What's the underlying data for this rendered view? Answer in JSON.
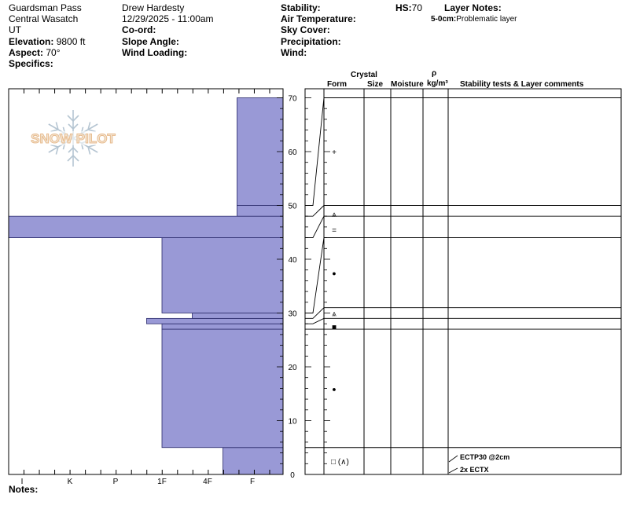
{
  "header": {
    "location": "Guardsman Pass",
    "range": "Central Wasatch",
    "state": "UT",
    "elevation_label": "Elevation:",
    "elevation_value": "9800 ft",
    "aspect_label": "Aspect:",
    "aspect_value": "70°",
    "specifics_label": "Specifics:",
    "observer": "Drew Hardesty",
    "datetime": "12/29/2025 - 11:00am",
    "coord_label": "Co-ord:",
    "slope_label": "Slope Angle:",
    "wind_loading_label": "Wind Loading:",
    "stability_label": "Stability:",
    "air_temp_label": "Air Temperature:",
    "sky_cover_label": "Sky Cover:",
    "precip_label": "Precipitation:",
    "wind_label": "Wind:",
    "hs_label": "HS:",
    "hs_value": "70",
    "layer_notes_label": "Layer Notes:",
    "layer_note_depth": "5-0cm:",
    "layer_note_text": "Problematic layer"
  },
  "notes_label": "Notes:",
  "logo_text": "SNOW PILOT",
  "columns": {
    "crystal": "Crystal",
    "form": "Form",
    "size": "Size",
    "moisture": "Moisture",
    "rho": "ρ",
    "density": "kg/m³",
    "stability": "Stability tests & Layer comments"
  },
  "chart_data": {
    "type": "snow-profile",
    "height_axis": {
      "min": 0,
      "max": 70,
      "ticks": [
        0,
        10,
        20,
        30,
        40,
        50,
        60,
        70
      ]
    },
    "hardness_axis": {
      "labels": [
        "I",
        "K",
        "P",
        "1F",
        "4F",
        "F"
      ]
    },
    "hardness_layers": [
      {
        "bottom": 0,
        "top": 5,
        "hardness": "4F-"
      },
      {
        "bottom": 5,
        "top": 27,
        "hardness": "1F"
      },
      {
        "bottom": 27,
        "top": 28,
        "hardness": "1F"
      },
      {
        "bottom": 28,
        "top": 29,
        "hardness": "1F+"
      },
      {
        "bottom": 29,
        "top": 30,
        "hardness": "4F+"
      },
      {
        "bottom": 30,
        "top": 44,
        "hardness": "1F"
      },
      {
        "bottom": 44,
        "top": 48,
        "hardness": "I"
      },
      {
        "bottom": 48,
        "top": 50,
        "hardness": "F+"
      },
      {
        "bottom": 50,
        "top": 70,
        "hardness": "F+"
      }
    ],
    "layer_boundaries": [
      5,
      27,
      28,
      29,
      30,
      44,
      48,
      50,
      70
    ],
    "label_boundaries": [
      5,
      27,
      29,
      31,
      44,
      48,
      50,
      70
    ],
    "crystal_forms": [
      {
        "height": 60,
        "symbol": "+"
      },
      {
        "height": 48.5,
        "symbol": "⩓"
      },
      {
        "height": 45.5,
        "symbol": "="
      },
      {
        "height": 37.5,
        "symbol": "●"
      },
      {
        "height": 30,
        "symbol": "⩓"
      },
      {
        "height": 27.5,
        "symbol": "■"
      },
      {
        "height": 16,
        "symbol": "●"
      },
      {
        "height": 2.5,
        "symbol": "□ (∧)"
      }
    ],
    "stability_tests": [
      {
        "text": "ECTP30 @2cm"
      },
      {
        "text": "2x ECTX"
      }
    ],
    "colors": {
      "fill": "#9999d6",
      "stroke": "#2a2a6a"
    }
  }
}
